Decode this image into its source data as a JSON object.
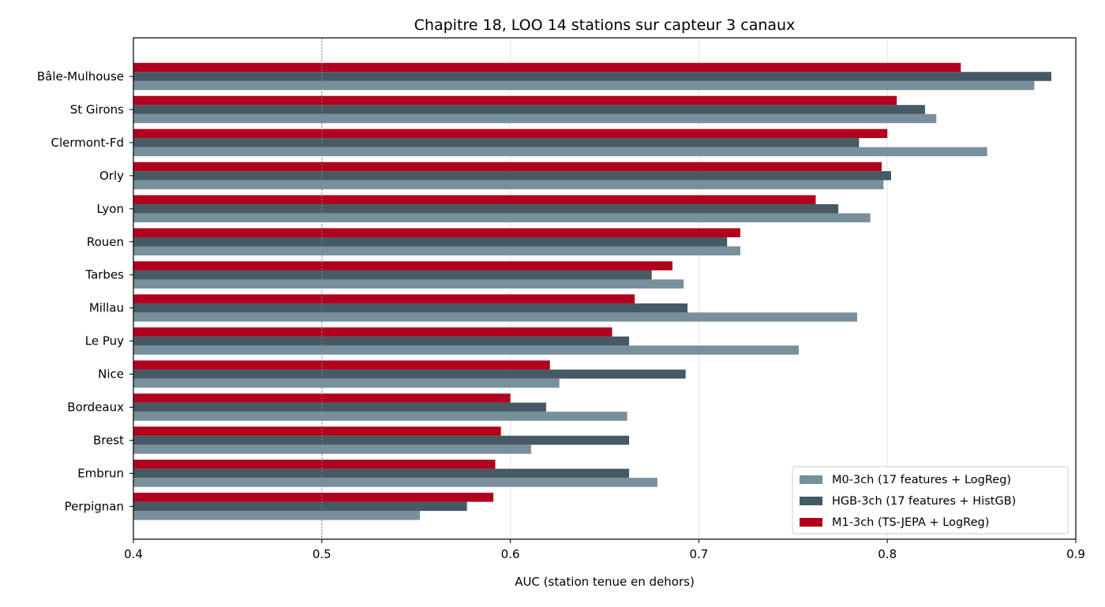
{
  "chart_data": {
    "type": "bar",
    "orientation": "horizontal",
    "title": "Chapitre 18, LOO 14 stations sur capteur 3 canaux",
    "xlabel": "AUC (station tenue en dehors)",
    "ylabel": "",
    "xlim": [
      0.4,
      0.9
    ],
    "xticks": [
      "0.4",
      "0.5",
      "0.6",
      "0.7",
      "0.8",
      "0.9"
    ],
    "grid": "vertical",
    "reference_line": 0.5,
    "legend_position": "bottom-right",
    "categories": [
      "Bâle-Mulhouse",
      "St Girons",
      "Clermont-Fd",
      "Orly",
      "Lyon",
      "Rouen",
      "Tarbes",
      "Millau",
      "Le Puy",
      "Nice",
      "Bordeaux",
      "Brest",
      "Embrun",
      "Perpignan"
    ],
    "series": [
      {
        "name": "M0-3ch (17 features + LogReg)",
        "color": "#78909c",
        "values": [
          0.878,
          0.826,
          0.853,
          0.798,
          0.791,
          0.722,
          0.692,
          0.784,
          0.753,
          0.626,
          0.662,
          0.611,
          0.678,
          0.552
        ]
      },
      {
        "name": "HGB-3ch (17 features + HistGB)",
        "color": "#455a64",
        "values": [
          0.887,
          0.82,
          0.785,
          0.802,
          0.774,
          0.715,
          0.675,
          0.694,
          0.663,
          0.693,
          0.619,
          0.663,
          0.663,
          0.577
        ]
      },
      {
        "name": "M1-3ch (TS-JEPA + LogReg)",
        "color": "#b0001e",
        "values": [
          0.839,
          0.805,
          0.8,
          0.797,
          0.762,
          0.722,
          0.686,
          0.666,
          0.654,
          0.621,
          0.6,
          0.595,
          0.592,
          0.591
        ]
      }
    ]
  }
}
